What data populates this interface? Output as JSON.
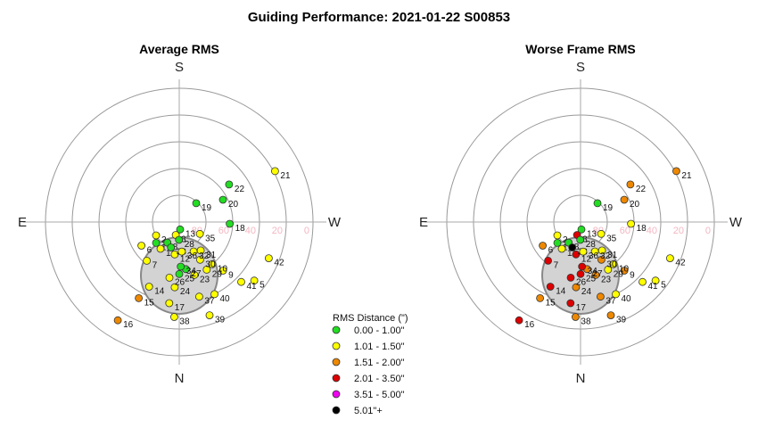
{
  "title": "Guiding Performance: 2021-01-22 S00853",
  "ring_labels": [
    "80",
    "60",
    "40",
    "20",
    "0"
  ],
  "legend": {
    "title": "RMS Distance (\")",
    "items": [
      {
        "label": "0.00 - 1.00\"",
        "color": "#22dd22"
      },
      {
        "label": "1.01 - 1.50\"",
        "color": "#ffff00"
      },
      {
        "label": "1.51 - 2.00\"",
        "color": "#ee8800"
      },
      {
        "label": "2.01 - 3.50\"",
        "color": "#dd0000"
      },
      {
        "label": "3.51 - 5.00\"",
        "color": "#ee00ee"
      },
      {
        "label": "5.01\"+",
        "color": "#000000"
      }
    ]
  },
  "chart_data": [
    {
      "type": "scatter",
      "projection": "polar-sky",
      "title": "Average RMS",
      "compass": {
        "top": "S",
        "bottom": "N",
        "left": "E",
        "right": "W"
      },
      "radial_axis": "elevation (deg)",
      "rlim": [
        90,
        0
      ],
      "ring_ticks": [
        80,
        60,
        40,
        20,
        0
      ],
      "points": [
        {
          "id": "1",
          "az": 132,
          "el": 69,
          "cls": 0
        },
        {
          "id": "2",
          "az": 120,
          "el": 72,
          "cls": 1
        },
        {
          "id": "3",
          "az": 165,
          "el": 81,
          "cls": 1
        },
        {
          "id": "5",
          "az": 232,
          "el": 26,
          "cls": 1
        },
        {
          "id": "6",
          "az": 122,
          "el": 60,
          "cls": 1
        },
        {
          "id": "7",
          "az": 140,
          "el": 56,
          "cls": 1
        },
        {
          "id": "8",
          "az": 150,
          "el": 74,
          "cls": 0
        },
        {
          "id": "9",
          "az": 222,
          "el": 46,
          "cls": 1
        },
        {
          "id": "10",
          "az": 218,
          "el": 54,
          "cls": 1
        },
        {
          "id": "11",
          "az": 145,
          "el": 68,
          "cls": 1
        },
        {
          "id": "12",
          "az": 172,
          "el": 68,
          "cls": 1
        },
        {
          "id": "13",
          "az": 187,
          "el": 85,
          "cls": 0
        },
        {
          "id": "14",
          "az": 155,
          "el": 42,
          "cls": 1
        },
        {
          "id": "15",
          "az": 152,
          "el": 32,
          "cls": 2
        },
        {
          "id": "16",
          "az": 148,
          "el": 12,
          "cls": 2
        },
        {
          "id": "17",
          "az": 173,
          "el": 35,
          "cls": 1
        },
        {
          "id": "18",
          "az": 268,
          "el": 56,
          "cls": 0
        },
        {
          "id": "19",
          "az": 318,
          "el": 73,
          "cls": 0
        },
        {
          "id": "20",
          "az": 297,
          "el": 57,
          "cls": 0
        },
        {
          "id": "21",
          "az": 298,
          "el": 17,
          "cls": 1
        },
        {
          "id": "22",
          "az": 307,
          "el": 48,
          "cls": 0
        },
        {
          "id": "23",
          "az": 196,
          "el": 53,
          "cls": 1
        },
        {
          "id": "24",
          "az": 176,
          "el": 46,
          "cls": 1
        },
        {
          "id": "25",
          "az": 180,
          "el": 55,
          "cls": 0
        },
        {
          "id": "26",
          "az": 170,
          "el": 52,
          "cls": 1
        },
        {
          "id": "27",
          "az": 188,
          "el": 58,
          "cls": 0
        },
        {
          "id": "28",
          "az": 179,
          "el": 78,
          "cls": 0
        },
        {
          "id": "29",
          "az": 210,
          "el": 53,
          "cls": 1
        },
        {
          "id": "30",
          "az": 209,
          "el": 61,
          "cls": 1
        },
        {
          "id": "31",
          "az": 217,
          "el": 66,
          "cls": 1
        },
        {
          "id": "32",
          "az": 206,
          "el": 68,
          "cls": 1
        },
        {
          "id": "33",
          "az": 162,
          "el": 72,
          "cls": 0
        },
        {
          "id": "34",
          "az": 182,
          "el": 60,
          "cls": 0
        },
        {
          "id": "35",
          "az": 240,
          "el": 74,
          "cls": 1
        },
        {
          "id": "36",
          "az": 185,
          "el": 70,
          "cls": 1
        },
        {
          "id": "37",
          "az": 195,
          "el": 38,
          "cls": 1
        },
        {
          "id": "38",
          "az": 177,
          "el": 26,
          "cls": 1
        },
        {
          "id": "39",
          "az": 198,
          "el": 24,
          "cls": 1
        },
        {
          "id": "40",
          "az": 206,
          "el": 36,
          "cls": 1
        },
        {
          "id": "41",
          "az": 226,
          "el": 32,
          "cls": 1
        },
        {
          "id": "42",
          "az": 248,
          "el": 25,
          "cls": 1
        }
      ]
    },
    {
      "type": "scatter",
      "projection": "polar-sky",
      "title": "Worse Frame RMS",
      "compass": {
        "top": "S",
        "bottom": "N",
        "left": "E",
        "right": "W"
      },
      "radial_axis": "elevation (deg)",
      "rlim": [
        90,
        0
      ],
      "ring_ticks": [
        80,
        60,
        40,
        20,
        0
      ],
      "points": [
        {
          "id": "1",
          "az": 132,
          "el": 69,
          "cls": 0
        },
        {
          "id": "2",
          "az": 120,
          "el": 72,
          "cls": 1
        },
        {
          "id": "3",
          "az": 165,
          "el": 81,
          "cls": 3
        },
        {
          "id": "5",
          "az": 232,
          "el": 26,
          "cls": 1
        },
        {
          "id": "6",
          "az": 122,
          "el": 60,
          "cls": 2
        },
        {
          "id": "7",
          "az": 140,
          "el": 56,
          "cls": 3
        },
        {
          "id": "8",
          "az": 150,
          "el": 74,
          "cls": 0
        },
        {
          "id": "9",
          "az": 222,
          "el": 46,
          "cls": 2
        },
        {
          "id": "10",
          "az": 218,
          "el": 54,
          "cls": 1
        },
        {
          "id": "11",
          "az": 145,
          "el": 68,
          "cls": 1
        },
        {
          "id": "12",
          "az": 172,
          "el": 68,
          "cls": 3
        },
        {
          "id": "13",
          "az": 187,
          "el": 85,
          "cls": 0
        },
        {
          "id": "14",
          "az": 155,
          "el": 42,
          "cls": 3
        },
        {
          "id": "15",
          "az": 152,
          "el": 32,
          "cls": 2
        },
        {
          "id": "16",
          "az": 148,
          "el": 12,
          "cls": 3
        },
        {
          "id": "17",
          "az": 173,
          "el": 35,
          "cls": 3
        },
        {
          "id": "18",
          "az": 268,
          "el": 56,
          "cls": 1
        },
        {
          "id": "19",
          "az": 318,
          "el": 73,
          "cls": 0
        },
        {
          "id": "20",
          "az": 297,
          "el": 57,
          "cls": 2
        },
        {
          "id": "21",
          "az": 298,
          "el": 17,
          "cls": 2
        },
        {
          "id": "22",
          "az": 307,
          "el": 48,
          "cls": 2
        },
        {
          "id": "23",
          "az": 196,
          "el": 53,
          "cls": 2
        },
        {
          "id": "24",
          "az": 176,
          "el": 46,
          "cls": 2
        },
        {
          "id": "25",
          "az": 180,
          "el": 55,
          "cls": 3
        },
        {
          "id": "26",
          "az": 170,
          "el": 52,
          "cls": 3
        },
        {
          "id": "27",
          "az": 188,
          "el": 58,
          "cls": 2
        },
        {
          "id": "28",
          "az": 179,
          "el": 78,
          "cls": 0
        },
        {
          "id": "29",
          "az": 210,
          "el": 53,
          "cls": 1
        },
        {
          "id": "30",
          "az": 209,
          "el": 61,
          "cls": 2
        },
        {
          "id": "31",
          "az": 217,
          "el": 66,
          "cls": 1
        },
        {
          "id": "32",
          "az": 206,
          "el": 68,
          "cls": 1
        },
        {
          "id": "33",
          "az": 162,
          "el": 72,
          "cls": 5
        },
        {
          "id": "34",
          "az": 182,
          "el": 60,
          "cls": 3
        },
        {
          "id": "35",
          "az": 240,
          "el": 74,
          "cls": 1
        },
        {
          "id": "36",
          "az": 185,
          "el": 70,
          "cls": 1
        },
        {
          "id": "37",
          "az": 195,
          "el": 38,
          "cls": 2
        },
        {
          "id": "38",
          "az": 177,
          "el": 26,
          "cls": 2
        },
        {
          "id": "39",
          "az": 198,
          "el": 24,
          "cls": 2
        },
        {
          "id": "40",
          "az": 206,
          "el": 36,
          "cls": 1
        },
        {
          "id": "41",
          "az": 226,
          "el": 32,
          "cls": 1
        },
        {
          "id": "42",
          "az": 248,
          "el": 25,
          "cls": 1
        }
      ]
    }
  ]
}
